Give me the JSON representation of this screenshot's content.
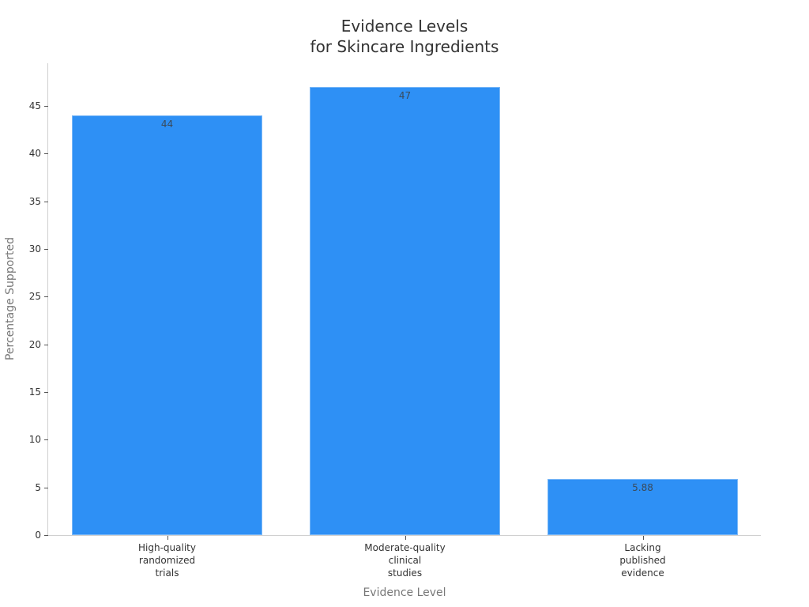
{
  "chart_data": {
    "type": "bar",
    "title": "Evidence Levels\nfor Skincare Ingredients",
    "title_lines": [
      "Evidence Levels",
      "for Skincare Ingredients"
    ],
    "xlabel": "Evidence Level",
    "ylabel": "Percentage Supported",
    "categories": [
      "High-quality randomized trials",
      "Moderate-quality clinical studies",
      "Lacking published evidence"
    ],
    "category_lines": [
      "High-quality\nrandomized\ntrials",
      "Moderate-quality\nclinical\nstudies",
      "Lacking\npublished\nevidence"
    ],
    "values": [
      44,
      47,
      5.88
    ],
    "value_labels": [
      "44",
      "47",
      "5.88"
    ],
    "ylim": [
      0,
      49.5
    ],
    "yticks": [
      0,
      5,
      10,
      15,
      20,
      25,
      30,
      35,
      40,
      45
    ],
    "grid": false,
    "legend": null,
    "bar_color": "#2e90f5"
  }
}
